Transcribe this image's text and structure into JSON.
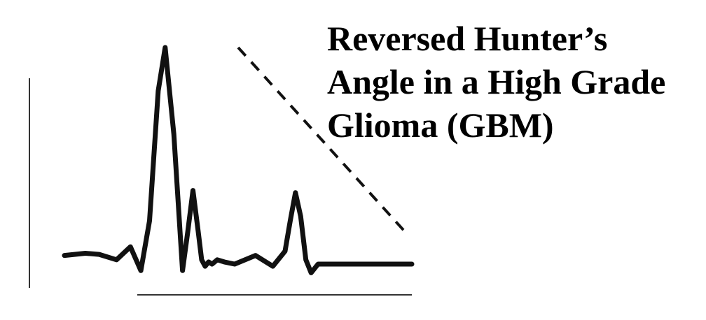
{
  "chart_data": {
    "type": "line",
    "title_lines": [
      "Reversed Hunter’s",
      "Angle in a High Grade",
      "Glioma (GBM)"
    ],
    "xlabel": "",
    "ylabel": "",
    "grid": false,
    "legend": "none",
    "x": [
      0,
      0.06,
      0.1,
      0.15,
      0.19,
      0.22,
      0.245,
      0.27,
      0.29,
      0.315,
      0.34,
      0.355,
      0.37,
      0.385,
      0.395,
      0.405,
      0.415,
      0.425,
      0.44,
      0.46,
      0.49,
      0.55,
      0.6,
      0.635,
      0.65,
      0.665,
      0.68,
      0.695,
      0.71,
      0.73,
      0.78,
      0.85,
      0.9,
      1.0
    ],
    "y": [
      0.04,
      0.05,
      0.045,
      0.02,
      0.08,
      -0.03,
      0.2,
      0.8,
      1.0,
      0.6,
      -0.03,
      0.15,
      0.34,
      0.15,
      0.02,
      -0.01,
      0.01,
      0.0,
      0.02,
      0.01,
      0.0,
      0.04,
      -0.01,
      0.06,
      0.2,
      0.33,
      0.22,
      0.02,
      -0.04,
      0.0,
      0.0,
      0.0,
      0.0,
      0.0
    ],
    "reference_line": {
      "style": "dashed",
      "x": [
        0.5,
        0.98
      ],
      "y": [
        1.0,
        0.15
      ]
    },
    "colors": {
      "curve": "#111111",
      "axes": "#333333",
      "dashed": "#111111"
    }
  }
}
